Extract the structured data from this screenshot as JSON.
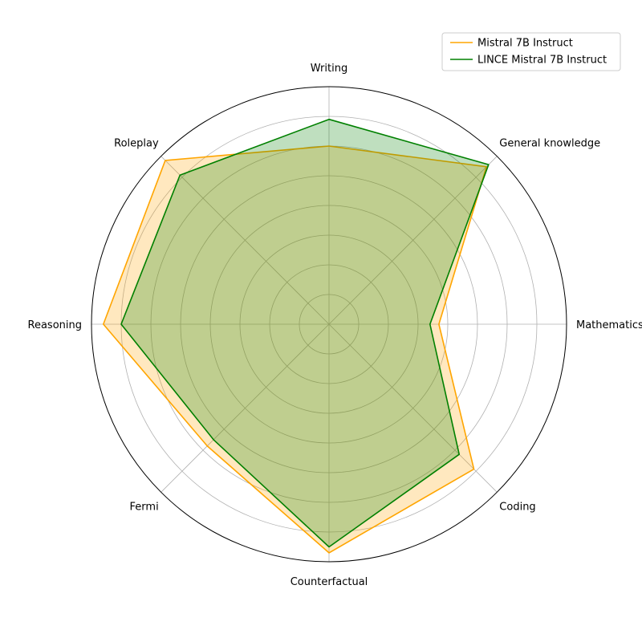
{
  "chart_data": {
    "type": "radar",
    "categories": [
      "Writing",
      "General knowledge",
      "Mathematics",
      "Coding",
      "Counterfactual",
      "Fermi",
      "Reasoning",
      "Roleplay"
    ],
    "rlim": [
      0,
      8
    ],
    "grid": true,
    "legend_position": "top-right",
    "series": [
      {
        "name": "Mistral 7B Instruct",
        "color": "#ffa500",
        "values": [
          6.0,
          7.5,
          3.7,
          6.9,
          7.7,
          5.8,
          7.6,
          7.8
        ]
      },
      {
        "name": "LINCE Mistral 7B Instruct",
        "color": "#008000",
        "values": [
          6.9,
          7.6,
          3.4,
          6.2,
          7.5,
          5.5,
          7.0,
          7.1
        ]
      }
    ]
  }
}
